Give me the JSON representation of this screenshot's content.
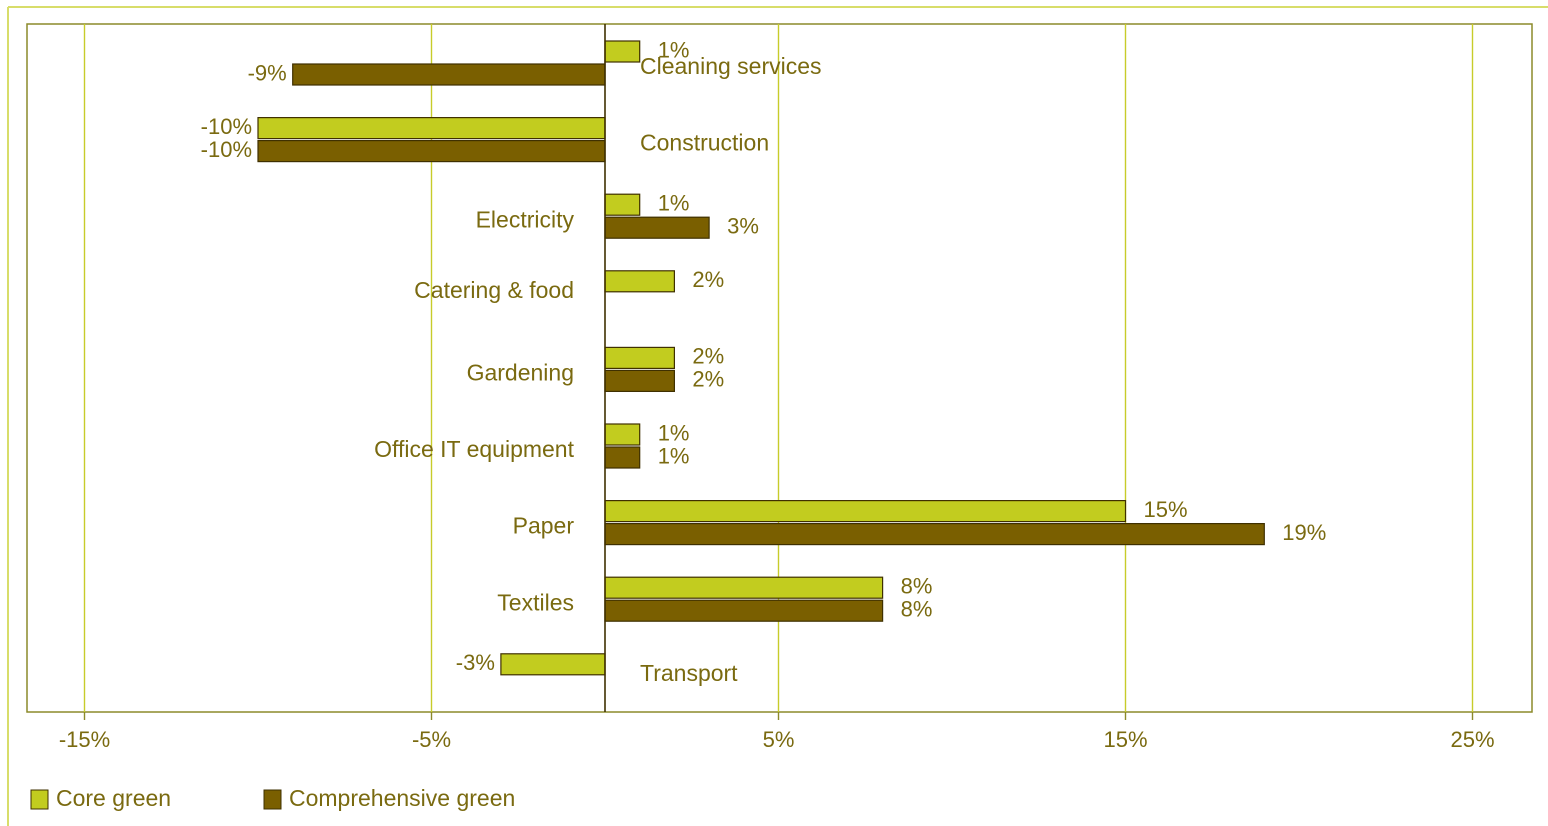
{
  "chart_data": {
    "type": "bar",
    "orientation": "horizontal",
    "categories": [
      "Cleaning services",
      "Construction",
      "Electricity",
      "Catering & food",
      "Gardening",
      "Office IT equipment",
      "Paper",
      "Textiles",
      "Transport"
    ],
    "series": [
      {
        "name": "Core green",
        "color": "#c2cc1f",
        "values": [
          1,
          -10,
          1,
          2,
          2,
          1,
          15,
          8,
          -3
        ],
        "labels": [
          "1%",
          "-10%",
          "1%",
          "2%",
          "2%",
          "1%",
          "15%",
          "8%",
          "-3%"
        ]
      },
      {
        "name": "Comprehensive green",
        "color": "#7a5f00",
        "values": [
          -9,
          -10,
          3,
          null,
          2,
          1,
          19,
          8,
          null
        ],
        "labels": [
          "-9%",
          "-10%",
          "3%",
          null,
          "2%",
          "1%",
          "19%",
          "8%",
          null
        ]
      }
    ],
    "x_ticks": [
      -15,
      -5,
      5,
      15,
      25
    ],
    "x_tick_labels": [
      "-15%",
      "-5%",
      "5%",
      "15%",
      "25%"
    ],
    "xlim": [
      -16.8,
      26.6
    ],
    "grid": "vertical",
    "legend_position": "bottom-left",
    "colors": {
      "border": "#8c8a2a",
      "grid": "#c7cc2a",
      "text": "#7a6a10",
      "axis_zero": "#3f3000",
      "frame": "#d8dd6a"
    }
  }
}
